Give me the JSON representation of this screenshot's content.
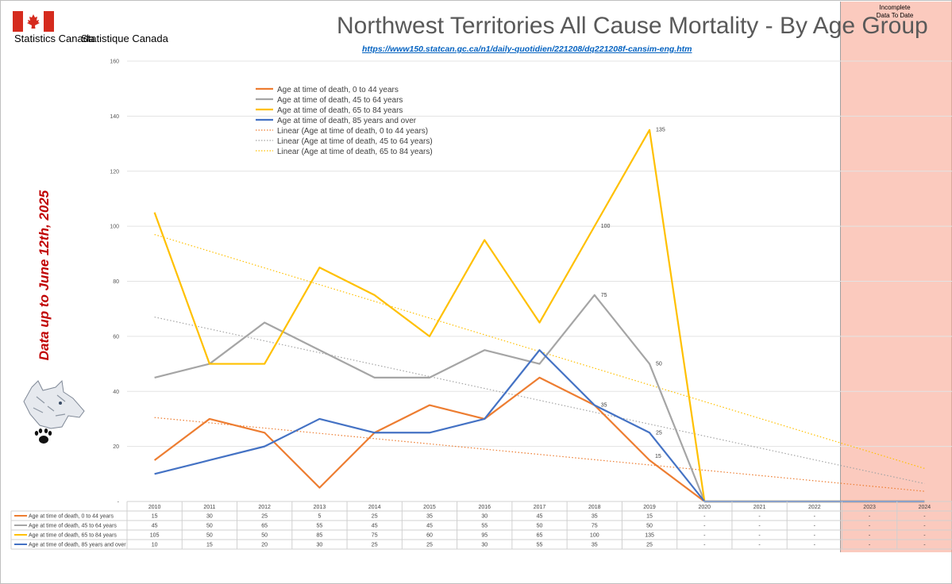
{
  "header": {
    "brand_en": "Statistics Canada",
    "brand_fr": "Statistique Canada",
    "title": "Northwest Territories All Cause Mortality - By Age Group",
    "source_url": "https://www150.statcan.gc.ca/n1/daily-quotidien/221208/dq221208f-cansim-eng.htm"
  },
  "annotations": {
    "incomplete_note": "Incomplete Data To Date",
    "side_note": "Data up to June 12th, 2025"
  },
  "colors": {
    "age_0_44": "#ED7D31",
    "age_45_64": "#A5A5A5",
    "age_65_84": "#FFC000",
    "age_85_plus": "#4472C4",
    "incomplete_shade": "#F8967D",
    "side_note": "#C00000"
  },
  "chart_data": {
    "type": "line",
    "title": "Northwest Territories All Cause Mortality - By Age Group",
    "categories": [
      "2010",
      "2011",
      "2012",
      "2013",
      "2014",
      "2015",
      "2016",
      "2017",
      "2018",
      "2019",
      "2020",
      "2021",
      "2022",
      "2023",
      "2024"
    ],
    "ylim": [
      0,
      160
    ],
    "yticks": [
      20,
      40,
      60,
      80,
      100,
      120,
      140,
      160
    ],
    "zero_tick_label": "-",
    "grid": true,
    "legend_position": "top-left",
    "series": [
      {
        "key": "age_0_44",
        "name": "Age at time of death, 0 to 44 years",
        "values": [
          15,
          30,
          25,
          5,
          25,
          35,
          30,
          45,
          35,
          15,
          0,
          0,
          0,
          0,
          0
        ],
        "table": [
          "15",
          "30",
          "25",
          "5",
          "25",
          "35",
          "30",
          "45",
          "35",
          "15",
          "-",
          "-",
          "-",
          "-",
          "-"
        ],
        "labels": {}
      },
      {
        "key": "age_45_64",
        "name": "Age at time of death, 45 to 64 years",
        "values": [
          45,
          50,
          65,
          55,
          45,
          45,
          55,
          50,
          75,
          50,
          0,
          0,
          0,
          0,
          0
        ],
        "table": [
          "45",
          "50",
          "65",
          "55",
          "45",
          "45",
          "55",
          "50",
          "75",
          "50",
          "-",
          "-",
          "-",
          "-",
          "-"
        ],
        "labels": {
          "8": "75",
          "9": "50"
        }
      },
      {
        "key": "age_65_84",
        "name": "Age at time of death, 65 to 84 years",
        "values": [
          105,
          50,
          50,
          85,
          75,
          60,
          95,
          65,
          100,
          135,
          0,
          0,
          0,
          0,
          0
        ],
        "table": [
          "105",
          "50",
          "50",
          "85",
          "75",
          "60",
          "95",
          "65",
          "100",
          "135",
          "-",
          "-",
          "-",
          "-",
          "-"
        ],
        "labels": {
          "8": "100",
          "9": "135"
        }
      },
      {
        "key": "age_85_plus",
        "name": "Age at time of death, 85 years and over",
        "values": [
          10,
          15,
          20,
          30,
          25,
          25,
          30,
          55,
          35,
          25,
          0,
          0,
          0,
          0,
          0
        ],
        "table": [
          "10",
          "15",
          "20",
          "30",
          "25",
          "25",
          "30",
          "55",
          "35",
          "25",
          "-",
          "-",
          "-",
          "-",
          "-"
        ],
        "labels": {
          "8": "35",
          "9": "25"
        }
      }
    ],
    "trendlines": [
      {
        "name": "Linear (Age at time of death, 0 to 44 years)",
        "color_key": "age_0_44",
        "start": 30.5,
        "end": 3.7
      },
      {
        "name": "Linear (Age at time of death, 45 to 64 years)",
        "color_key": "age_45_64",
        "start": 67,
        "end": 6.5
      },
      {
        "name": "Linear (Age at time of death, 65 to 84 years)",
        "color_key": "age_65_84",
        "start": 97,
        "end": 12
      }
    ],
    "extra_labels": [
      {
        "series_index": 0,
        "point_index": 9,
        "text": "15"
      }
    ],
    "table_row_labels": [
      "Age at time of death, 0 to 44 years",
      "Age at time of death, 45 to 64 years",
      "Age at time of death, 65 to 84 years",
      "Age at time of death, 85 years and over"
    ]
  }
}
